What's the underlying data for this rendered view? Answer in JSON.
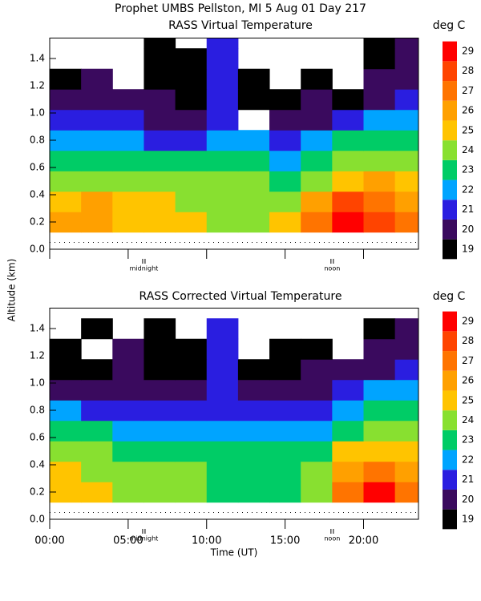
{
  "title": "Prophet  UMBS Pellston, MI    5 Aug 01 Day 217",
  "y_label": "Altitude (km)",
  "x_label": "Time (UT)",
  "chart_data": [
    {
      "type": "heatmap",
      "title": "RASS Virtual Temperature",
      "colorbar_label": "deg C",
      "x": [
        1,
        3,
        5,
        7,
        9,
        11,
        13,
        15,
        17,
        19,
        21,
        23
      ],
      "y": [
        0.2,
        0.35,
        0.5,
        0.65,
        0.8,
        0.95,
        1.1,
        1.25,
        1.4,
        1.55
      ],
      "values": [
        [
          26,
          26,
          25,
          25,
          25,
          24,
          24,
          25,
          27,
          29,
          28,
          27
        ],
        [
          25,
          26,
          25,
          25,
          24,
          24,
          24,
          24,
          26,
          28,
          27,
          26
        ],
        [
          24,
          24,
          24,
          24,
          24,
          24,
          24,
          23,
          24,
          25,
          26,
          25
        ],
        [
          23,
          23,
          23,
          23,
          23,
          23,
          23,
          22,
          23,
          24,
          24,
          24
        ],
        [
          22,
          22,
          22,
          21,
          21,
          22,
          22,
          21,
          22,
          23,
          23,
          23
        ],
        [
          21,
          21,
          21,
          20,
          20,
          21,
          null,
          20,
          20,
          21,
          22,
          22
        ],
        [
          20,
          20,
          20,
          20,
          19,
          21,
          19,
          19,
          20,
          19,
          20,
          21
        ],
        [
          19,
          20,
          null,
          19,
          19,
          21,
          19,
          null,
          19,
          null,
          20,
          20
        ],
        [
          null,
          null,
          null,
          19,
          19,
          21,
          null,
          null,
          null,
          null,
          19,
          20
        ],
        [
          null,
          null,
          null,
          19,
          null,
          21,
          null,
          null,
          null,
          null,
          19,
          20
        ]
      ],
      "xlim": [
        0,
        23.5
      ],
      "ylim": [
        0,
        1.55
      ],
      "xticks": [
        0,
        5,
        10,
        15,
        20
      ],
      "xtick_labels": false,
      "yticks": [
        {
          "value": 0,
          "label": "0.0"
        },
        0.2,
        0.4,
        0.6,
        0.8,
        {
          "value": 1,
          "label": "1.0"
        },
        1.2,
        1.4
      ],
      "levels": [
        19,
        20,
        21,
        22,
        23,
        24,
        25,
        26,
        27,
        28,
        29
      ],
      "colors": [
        "#000000",
        "#3a0a5e",
        "#2a1ee0",
        "#00a4ff",
        "#00cc66",
        "#88e030",
        "#ffc400",
        "#ffa000",
        "#ff7400",
        "#ff4400",
        "#ff0000"
      ],
      "reference_line": 0.05,
      "annotations": [
        {
          "x": 6,
          "text": "midnight"
        },
        {
          "x": 18,
          "text": "noon"
        }
      ]
    },
    {
      "type": "heatmap",
      "title": "RASS Corrected Virtual Temperature",
      "colorbar_label": "deg C",
      "x": [
        1,
        3,
        5,
        7,
        9,
        11,
        13,
        15,
        17,
        19,
        21,
        23
      ],
      "y": [
        0.2,
        0.35,
        0.5,
        0.65,
        0.8,
        0.95,
        1.1,
        1.25,
        1.4,
        1.55
      ],
      "values": [
        [
          25,
          25,
          24,
          24,
          24,
          23,
          23,
          23,
          24,
          27,
          29,
          27
        ],
        [
          25,
          24,
          24,
          24,
          24,
          23,
          23,
          23,
          24,
          26,
          27,
          26
        ],
        [
          24,
          24,
          23,
          23,
          23,
          23,
          23,
          23,
          23,
          25,
          25,
          25
        ],
        [
          23,
          23,
          22,
          22,
          22,
          22,
          22,
          22,
          22,
          23,
          24,
          24
        ],
        [
          22,
          21,
          21,
          21,
          21,
          21,
          21,
          21,
          21,
          22,
          23,
          23
        ],
        [
          20,
          20,
          20,
          20,
          20,
          21,
          20,
          20,
          20,
          21,
          22,
          22
        ],
        [
          19,
          19,
          20,
          19,
          19,
          21,
          19,
          19,
          20,
          20,
          20,
          21
        ],
        [
          19,
          null,
          20,
          19,
          19,
          21,
          null,
          19,
          19,
          null,
          20,
          20
        ],
        [
          null,
          19,
          null,
          19,
          null,
          21,
          null,
          null,
          null,
          null,
          19,
          20
        ],
        [
          null,
          null,
          null,
          null,
          null,
          null,
          null,
          null,
          null,
          null,
          null,
          null
        ]
      ],
      "xlim": [
        0,
        23.5
      ],
      "ylim": [
        0,
        1.55
      ],
      "xticks": [
        {
          "value": 0,
          "label": "00:00"
        },
        {
          "value": 5,
          "label": "05:00"
        },
        {
          "value": 10,
          "label": "10:00"
        },
        {
          "value": 15,
          "label": "15:00"
        },
        {
          "value": 20,
          "label": "20:00"
        }
      ],
      "xtick_labels": true,
      "yticks": [
        {
          "value": 0,
          "label": "0.0"
        },
        0.2,
        0.4,
        0.6,
        0.8,
        {
          "value": 1,
          "label": "1.0"
        },
        1.2,
        1.4
      ],
      "levels": [
        19,
        20,
        21,
        22,
        23,
        24,
        25,
        26,
        27,
        28,
        29
      ],
      "colors": [
        "#000000",
        "#3a0a5e",
        "#2a1ee0",
        "#00a4ff",
        "#00cc66",
        "#88e030",
        "#ffc400",
        "#ffa000",
        "#ff7400",
        "#ff4400",
        "#ff0000"
      ],
      "reference_line": 0.05,
      "annotations": [
        {
          "x": 6,
          "text": "midnight"
        },
        {
          "x": 18,
          "text": "noon"
        }
      ]
    }
  ]
}
